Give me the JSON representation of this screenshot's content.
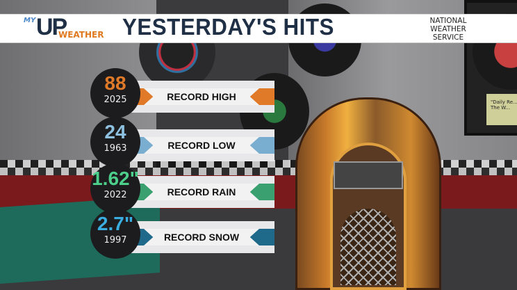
{
  "header": {
    "logo_my": "MY",
    "logo_up": "UP",
    "logo_weather": "WEATHER",
    "title": "YESTERDAY'S HITS",
    "source": "NATIONAL WEATHER SERVICE"
  },
  "background": {
    "plaque_text": "\"Daily Re... The W..."
  },
  "records": [
    {
      "value": "88",
      "year": "2025",
      "label": "RECORD HIGH",
      "color": "#e07a28"
    },
    {
      "value": "24",
      "year": "1963",
      "label": "RECORD LOW",
      "color": "#7aaed0"
    },
    {
      "value": "1.62\"",
      "year": "2022",
      "label": "RECORD RAIN",
      "color": "#3aa070"
    },
    {
      "value": "2.7\"",
      "year": "1997",
      "label": "RECORD SNOW",
      "color": "#1f6a8a"
    }
  ],
  "value_colors": [
    "#e07a28",
    "#8ec0e0",
    "#4ccf8a",
    "#3aaee0"
  ]
}
